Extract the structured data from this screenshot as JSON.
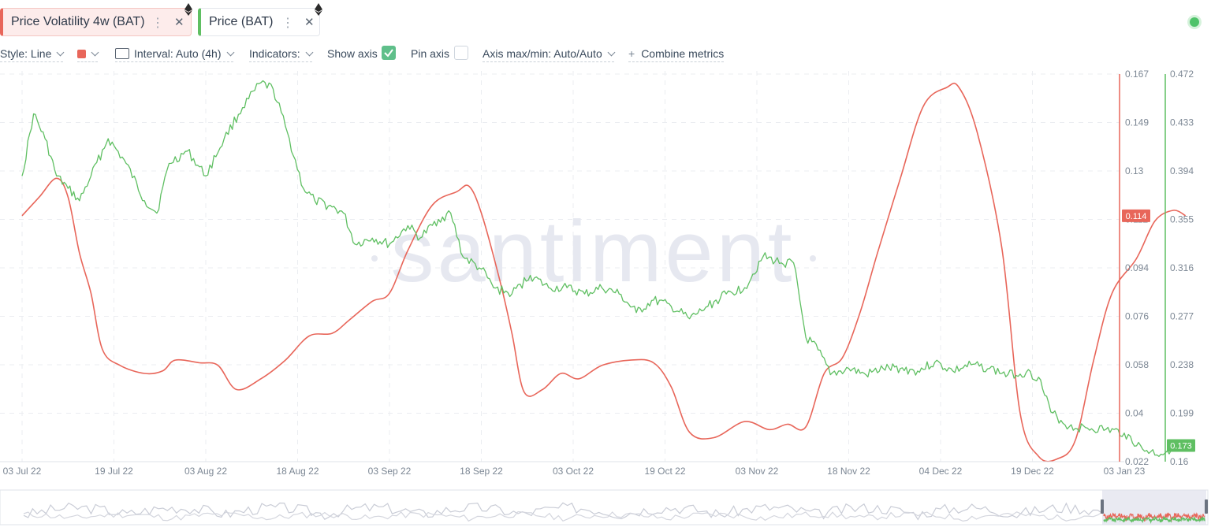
{
  "tabs": [
    {
      "label": "Price Volatility 4w (BAT)",
      "color": "#e8665a"
    },
    {
      "label": "Price (BAT)",
      "color": "#5fbf62"
    }
  ],
  "toolbar": {
    "style": "Style: Line",
    "interval": "Interval: Auto (4h)",
    "indicators": "Indicators:",
    "show_axis": "Show axis",
    "show_axis_checked": true,
    "pin_axis": "Pin axis",
    "pin_axis_checked": false,
    "axis_maxmin": "Axis max/min: Auto/Auto",
    "combine": "Combine metrics",
    "plus": "+"
  },
  "watermark": "santiment",
  "chart_data": {
    "type": "line",
    "x_dates": [
      "2022-07-03",
      "2023-01-03"
    ],
    "x_ticks": [
      "03 Jul 22",
      "19 Jul 22",
      "03 Aug 22",
      "18 Aug 22",
      "03 Sep 22",
      "18 Sep 22",
      "03 Oct 22",
      "19 Oct 22",
      "03 Nov 22",
      "18 Nov 22",
      "04 Dec 22",
      "19 Dec 22",
      "03 Jan 23"
    ],
    "left_axis": {
      "ticks": [
        "0.167",
        "0.149",
        "0.13",
        "0.112",
        "0.094",
        "0.076",
        "0.058",
        "0.04",
        "0.022"
      ],
      "ylim": [
        0.022,
        0.167
      ],
      "color": "#e8665a",
      "last_value_label": "0.114"
    },
    "right_axis": {
      "ticks": [
        "0.472",
        "0.433",
        "0.394",
        "0.355",
        "0.316",
        "0.277",
        "0.238",
        "0.199",
        "0.16"
      ],
      "ylim": [
        0.16,
        0.472
      ],
      "color": "#5fbf62",
      "last_value_label": "0.173"
    },
    "series": [
      {
        "axis": "left",
        "color": "#e8665a",
        "points": [
          [
            "2022-07-03",
            0.114
          ],
          [
            "2022-07-06",
            0.121
          ],
          [
            "2022-07-09",
            0.128
          ],
          [
            "2022-07-11",
            0.121
          ],
          [
            "2022-07-13",
            0.1
          ],
          [
            "2022-07-15",
            0.085
          ],
          [
            "2022-07-17",
            0.064
          ],
          [
            "2022-07-20",
            0.058
          ],
          [
            "2022-07-24",
            0.055
          ],
          [
            "2022-07-27",
            0.056
          ],
          [
            "2022-07-29",
            0.06
          ],
          [
            "2022-08-02",
            0.059
          ],
          [
            "2022-08-05",
            0.058
          ],
          [
            "2022-08-08",
            0.049
          ],
          [
            "2022-08-12",
            0.053
          ],
          [
            "2022-08-16",
            0.06
          ],
          [
            "2022-08-20",
            0.069
          ],
          [
            "2022-08-24",
            0.07
          ],
          [
            "2022-08-27",
            0.075
          ],
          [
            "2022-08-31",
            0.082
          ],
          [
            "2022-09-03",
            0.085
          ],
          [
            "2022-09-06",
            0.101
          ],
          [
            "2022-09-10",
            0.118
          ],
          [
            "2022-09-14",
            0.123
          ],
          [
            "2022-09-16",
            0.125
          ],
          [
            "2022-09-18",
            0.115
          ],
          [
            "2022-09-21",
            0.09
          ],
          [
            "2022-09-23",
            0.07
          ],
          [
            "2022-09-25",
            0.048
          ],
          [
            "2022-09-28",
            0.049
          ],
          [
            "2022-10-01",
            0.055
          ],
          [
            "2022-10-04",
            0.053
          ],
          [
            "2022-10-08",
            0.058
          ],
          [
            "2022-10-13",
            0.06
          ],
          [
            "2022-10-17",
            0.059
          ],
          [
            "2022-10-20",
            0.05
          ],
          [
            "2022-10-23",
            0.033
          ],
          [
            "2022-10-27",
            0.031
          ],
          [
            "2022-11-01",
            0.037
          ],
          [
            "2022-11-05",
            0.034
          ],
          [
            "2022-11-08",
            0.036
          ],
          [
            "2022-11-11",
            0.035
          ],
          [
            "2022-11-14",
            0.055
          ],
          [
            "2022-11-17",
            0.061
          ],
          [
            "2022-11-20",
            0.078
          ],
          [
            "2022-11-23",
            0.1
          ],
          [
            "2022-11-27",
            0.128
          ],
          [
            "2022-12-01",
            0.155
          ],
          [
            "2022-12-05",
            0.162
          ],
          [
            "2022-12-07",
            0.162
          ],
          [
            "2022-12-10",
            0.145
          ],
          [
            "2022-12-14",
            0.102
          ],
          [
            "2022-12-17",
            0.04
          ],
          [
            "2022-12-20",
            0.024
          ],
          [
            "2022-12-23",
            0.023
          ],
          [
            "2022-12-26",
            0.03
          ],
          [
            "2022-12-29",
            0.06
          ],
          [
            "2023-01-01",
            0.085
          ],
          [
            "2023-01-05",
            0.098
          ],
          [
            "2023-01-08",
            0.112
          ],
          [
            "2023-01-11",
            0.116
          ],
          [
            "2023-01-13",
            0.114
          ]
        ]
      },
      {
        "axis": "right",
        "color": "#5fbf62",
        "points": [
          [
            "2022-07-03",
            0.39
          ],
          [
            "2022-07-05",
            0.44
          ],
          [
            "2022-07-07",
            0.42
          ],
          [
            "2022-07-09",
            0.39
          ],
          [
            "2022-07-11",
            0.38
          ],
          [
            "2022-07-13",
            0.37
          ],
          [
            "2022-07-15",
            0.39
          ],
          [
            "2022-07-18",
            0.42
          ],
          [
            "2022-07-21",
            0.4
          ],
          [
            "2022-07-24",
            0.37
          ],
          [
            "2022-07-26",
            0.36
          ],
          [
            "2022-07-28",
            0.4
          ],
          [
            "2022-07-31",
            0.41
          ],
          [
            "2022-08-03",
            0.39
          ],
          [
            "2022-08-06",
            0.42
          ],
          [
            "2022-08-09",
            0.445
          ],
          [
            "2022-08-12",
            0.465
          ],
          [
            "2022-08-14",
            0.46
          ],
          [
            "2022-08-16",
            0.43
          ],
          [
            "2022-08-19",
            0.38
          ],
          [
            "2022-08-21",
            0.37
          ],
          [
            "2022-08-24",
            0.365
          ],
          [
            "2022-08-26",
            0.36
          ],
          [
            "2022-08-28",
            0.335
          ],
          [
            "2022-08-31",
            0.34
          ],
          [
            "2022-09-03",
            0.335
          ],
          [
            "2022-09-06",
            0.35
          ],
          [
            "2022-09-08",
            0.34
          ],
          [
            "2022-09-11",
            0.355
          ],
          [
            "2022-09-13",
            0.36
          ],
          [
            "2022-09-15",
            0.325
          ],
          [
            "2022-09-18",
            0.315
          ],
          [
            "2022-09-20",
            0.3
          ],
          [
            "2022-09-23",
            0.295
          ],
          [
            "2022-09-26",
            0.31
          ],
          [
            "2022-09-29",
            0.3
          ],
          [
            "2022-10-02",
            0.3
          ],
          [
            "2022-10-05",
            0.295
          ],
          [
            "2022-10-08",
            0.3
          ],
          [
            "2022-10-11",
            0.295
          ],
          [
            "2022-10-14",
            0.28
          ],
          [
            "2022-10-17",
            0.29
          ],
          [
            "2022-10-20",
            0.285
          ],
          [
            "2022-10-23",
            0.275
          ],
          [
            "2022-10-26",
            0.285
          ],
          [
            "2022-10-29",
            0.295
          ],
          [
            "2022-11-01",
            0.3
          ],
          [
            "2022-11-04",
            0.325
          ],
          [
            "2022-11-07",
            0.32
          ],
          [
            "2022-11-09",
            0.32
          ],
          [
            "2022-11-11",
            0.26
          ],
          [
            "2022-11-13",
            0.25
          ],
          [
            "2022-11-15",
            0.23
          ],
          [
            "2022-11-18",
            0.235
          ],
          [
            "2022-11-21",
            0.23
          ],
          [
            "2022-11-24",
            0.235
          ],
          [
            "2022-11-27",
            0.235
          ],
          [
            "2022-11-30",
            0.233
          ],
          [
            "2022-12-03",
            0.24
          ],
          [
            "2022-12-06",
            0.233
          ],
          [
            "2022-12-09",
            0.238
          ],
          [
            "2022-12-12",
            0.235
          ],
          [
            "2022-12-15",
            0.23
          ],
          [
            "2022-12-18",
            0.232
          ],
          [
            "2022-12-20",
            0.228
          ],
          [
            "2022-12-22",
            0.2
          ],
          [
            "2022-12-25",
            0.188
          ],
          [
            "2022-12-28",
            0.187
          ],
          [
            "2022-12-31",
            0.186
          ],
          [
            "2023-01-03",
            0.183
          ],
          [
            "2023-01-06",
            0.17
          ],
          [
            "2023-01-09",
            0.166
          ],
          [
            "2023-01-11",
            0.172
          ],
          [
            "2023-01-13",
            0.173
          ]
        ]
      }
    ],
    "grid": true
  }
}
